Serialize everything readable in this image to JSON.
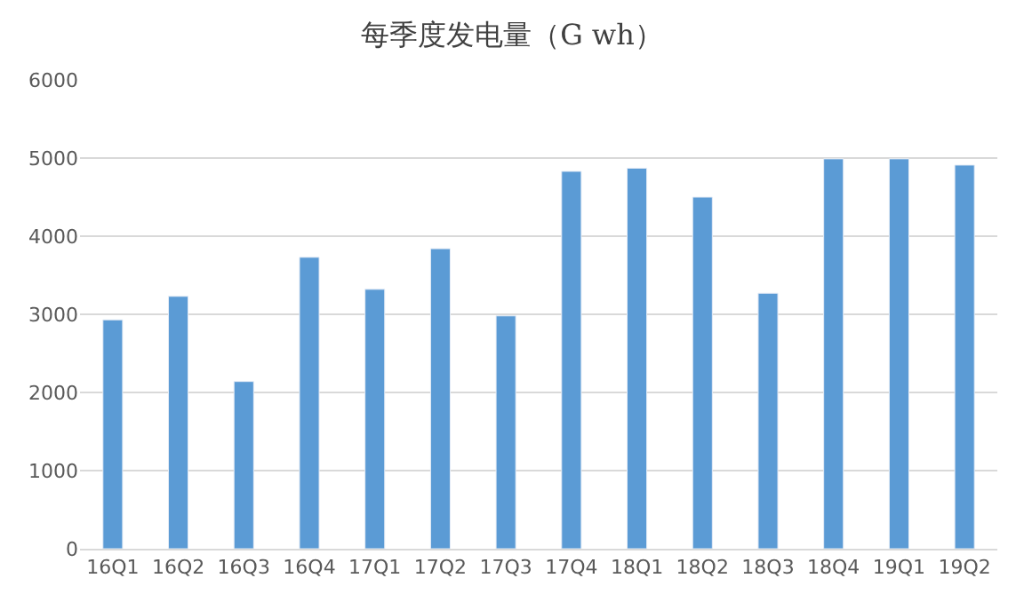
{
  "chart_data": {
    "type": "bar",
    "title": "每季度发电量（G wh）",
    "categories": [
      "16Q1",
      "16Q2",
      "16Q3",
      "16Q4",
      "17Q1",
      "17Q2",
      "17Q3",
      "17Q4",
      "18Q1",
      "18Q2",
      "18Q3",
      "18Q4",
      "19Q1",
      "19Q2"
    ],
    "values": [
      2930,
      3230,
      2140,
      3730,
      3320,
      3840,
      2980,
      4830,
      4870,
      4500,
      3270,
      4990,
      4990,
      4910
    ],
    "color": "#5b9bd5",
    "ylim": [
      0,
      6000
    ],
    "yticks": [
      0,
      1000,
      2000,
      3000,
      4000,
      5000,
      6000
    ],
    "grid": "y"
  }
}
